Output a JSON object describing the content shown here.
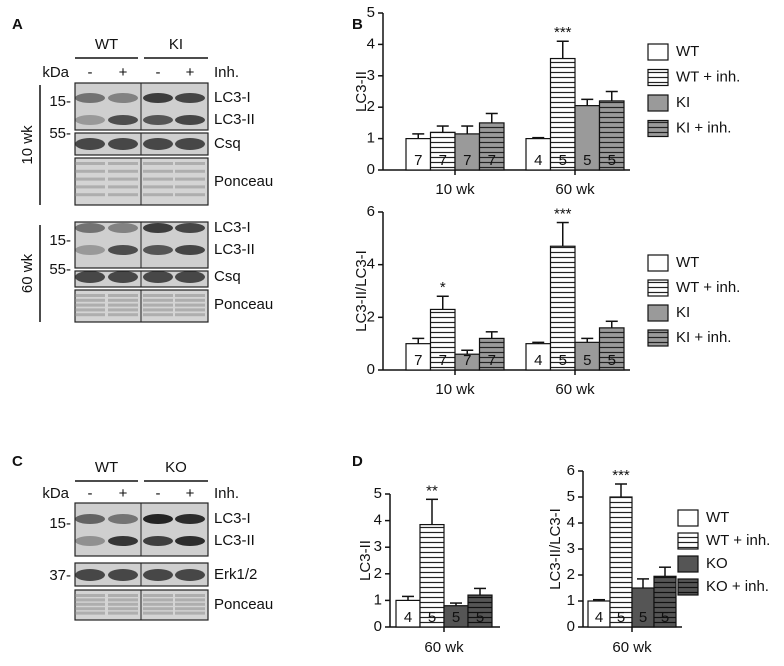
{
  "blots": [
    {
      "panel": "A",
      "groups": [
        "WT",
        "KI"
      ],
      "kda": "kDa",
      "lanes": [
        "-",
        "+",
        "-",
        "+"
      ],
      "treatment": "Inh.",
      "sections": [
        {
          "age": "10 wk",
          "rows": [
            {
              "marker": "15-",
              "labels": [
                "LC3-I",
                "LC3-II"
              ]
            },
            {
              "marker": "55-",
              "labels": [
                "Csq"
              ]
            },
            {
              "labels": [
                "Ponceau"
              ]
            }
          ]
        },
        {
          "age": "60 wk",
          "rows": [
            {
              "marker": "15-",
              "labels": [
                "LC3-I",
                "LC3-II"
              ]
            },
            {
              "marker": "55-",
              "labels": [
                "Csq"
              ]
            },
            {
              "labels": [
                "Ponceau"
              ]
            }
          ]
        }
      ]
    },
    {
      "panel": "C",
      "groups": [
        "WT",
        "KO"
      ],
      "kda": "kDa",
      "lanes": [
        "-",
        "+",
        "-",
        "+"
      ],
      "treatment": "Inh.",
      "sections": [
        {
          "rows": [
            {
              "marker": "15-",
              "labels": [
                "LC3-I",
                "LC3-II"
              ]
            },
            {
              "marker": "37-",
              "labels": [
                "Erk1/2"
              ]
            },
            {
              "labels": [
                "Ponceau"
              ]
            }
          ]
        }
      ]
    }
  ],
  "chart_data": [
    {
      "type": "bar",
      "panel": "B",
      "ylabel": "LC3-II",
      "ylim": [
        0,
        5
      ],
      "yticks": [
        0,
        1,
        2,
        3,
        4,
        5
      ],
      "categories": [
        "10 wk",
        "60 wk"
      ],
      "series": [
        {
          "name": "WT",
          "color": "#ffffff",
          "hatch": false,
          "values": [
            1.0,
            1.0
          ],
          "errors": [
            0.15,
            0.03
          ],
          "n": [
            7,
            4
          ]
        },
        {
          "name": "WT + inh.",
          "color": "#ffffff",
          "hatch": true,
          "values": [
            1.2,
            3.55
          ],
          "errors": [
            0.2,
            0.55
          ],
          "n": [
            7,
            5
          ],
          "significance": [
            null,
            "***"
          ]
        },
        {
          "name": "KI",
          "color": "#9a9a9a",
          "hatch": false,
          "values": [
            1.15,
            2.05
          ],
          "errors": [
            0.25,
            0.2
          ],
          "n": [
            7,
            5
          ]
        },
        {
          "name": "KI + inh.",
          "color": "#9a9a9a",
          "hatch": true,
          "values": [
            1.5,
            2.2
          ],
          "errors": [
            0.3,
            0.3
          ],
          "n": [
            7,
            5
          ]
        }
      ]
    },
    {
      "type": "bar",
      "ylabel": "LC3-II/LC3-I",
      "ylim": [
        0,
        6
      ],
      "yticks": [
        0,
        2,
        4,
        6
      ],
      "categories": [
        "10 wk",
        "60 wk"
      ],
      "series": [
        {
          "name": "WT",
          "color": "#ffffff",
          "hatch": false,
          "values": [
            1.0,
            1.0
          ],
          "errors": [
            0.2,
            0.05
          ],
          "n": [
            7,
            4
          ]
        },
        {
          "name": "WT + inh.",
          "color": "#ffffff",
          "hatch": true,
          "values": [
            2.3,
            4.7
          ],
          "errors": [
            0.5,
            0.9
          ],
          "n": [
            7,
            5
          ],
          "significance": [
            "*",
            "***"
          ]
        },
        {
          "name": "KI",
          "color": "#9a9a9a",
          "hatch": false,
          "values": [
            0.6,
            1.05
          ],
          "errors": [
            0.15,
            0.15
          ],
          "n": [
            7,
            5
          ]
        },
        {
          "name": "KI + inh.",
          "color": "#9a9a9a",
          "hatch": true,
          "values": [
            1.2,
            1.6
          ],
          "errors": [
            0.25,
            0.25
          ],
          "n": [
            7,
            5
          ]
        }
      ]
    },
    {
      "type": "bar",
      "panel": "D",
      "ylabel": "LC3-II",
      "ylim": [
        0,
        5
      ],
      "yticks": [
        0,
        1,
        2,
        3,
        4,
        5
      ],
      "categories": [
        "60 wk"
      ],
      "series": [
        {
          "color": "#ffffff",
          "hatch": false,
          "values": [
            1.0
          ],
          "errors": [
            0.15
          ],
          "n": [
            4
          ]
        },
        {
          "color": "#ffffff",
          "hatch": true,
          "values": [
            3.85
          ],
          "errors": [
            0.95
          ],
          "n": [
            5
          ],
          "significance": [
            "**"
          ]
        },
        {
          "color": "#555555",
          "hatch": false,
          "values": [
            0.8
          ],
          "errors": [
            0.1
          ],
          "n": [
            5
          ]
        },
        {
          "color": "#555555",
          "hatch": true,
          "values": [
            1.2
          ],
          "errors": [
            0.25
          ],
          "n": [
            5
          ]
        }
      ]
    },
    {
      "type": "bar",
      "ylabel": "LC3-II/LC3-I",
      "ylim": [
        0,
        6
      ],
      "yticks": [
        0,
        1,
        2,
        3,
        4,
        5,
        6
      ],
      "categories": [
        "60 wk"
      ],
      "series": [
        {
          "name": "WT",
          "color": "#ffffff",
          "hatch": false,
          "values": [
            1.0
          ],
          "errors": [
            0.05
          ],
          "n": [
            4
          ]
        },
        {
          "name": "WT + inh.",
          "color": "#ffffff",
          "hatch": true,
          "values": [
            5.0
          ],
          "errors": [
            0.5
          ],
          "n": [
            5
          ],
          "significance": [
            "***"
          ]
        },
        {
          "name": "KO",
          "color": "#555555",
          "hatch": false,
          "values": [
            1.5
          ],
          "errors": [
            0.35
          ],
          "n": [
            5
          ]
        },
        {
          "name": "KO + inh.",
          "color": "#555555",
          "hatch": true,
          "values": [
            1.95
          ],
          "errors": [
            0.35
          ],
          "n": [
            5
          ]
        }
      ]
    }
  ]
}
